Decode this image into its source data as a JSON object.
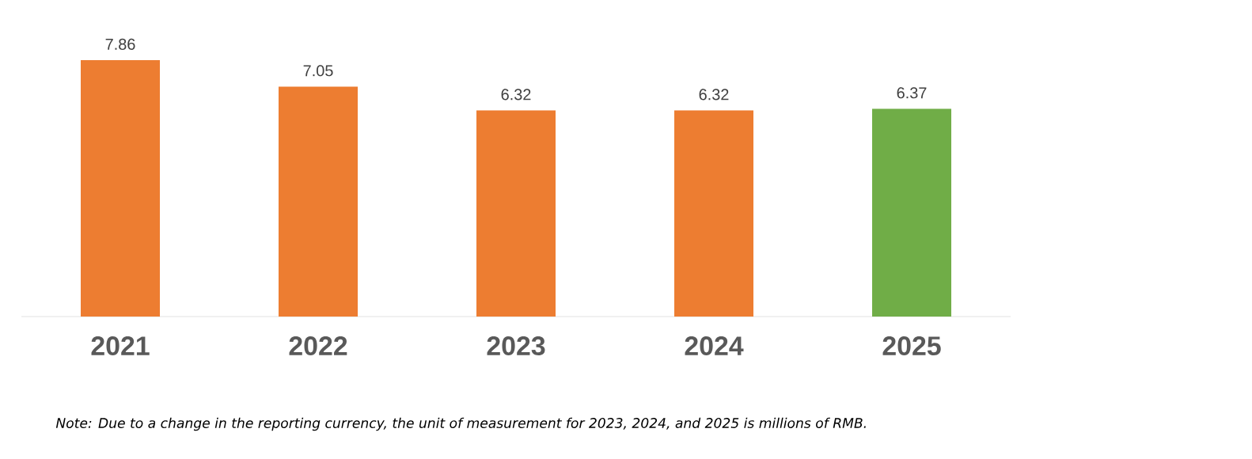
{
  "chart_data": {
    "type": "bar",
    "categories": [
      "2021",
      "2022",
      "2023",
      "2024",
      "2025"
    ],
    "values": [
      7.86,
      7.05,
      6.32,
      6.32,
      6.37
    ],
    "colors": [
      "#ed7d31",
      "#ed7d31",
      "#ed7d31",
      "#ed7d31",
      "#70ad47"
    ],
    "data_labels": true,
    "annotations": [
      "Note: Due to a change in the reporting currency, the unit of measurement for 2023, 2024, and 2025 is millions of RMB."
    ]
  }
}
